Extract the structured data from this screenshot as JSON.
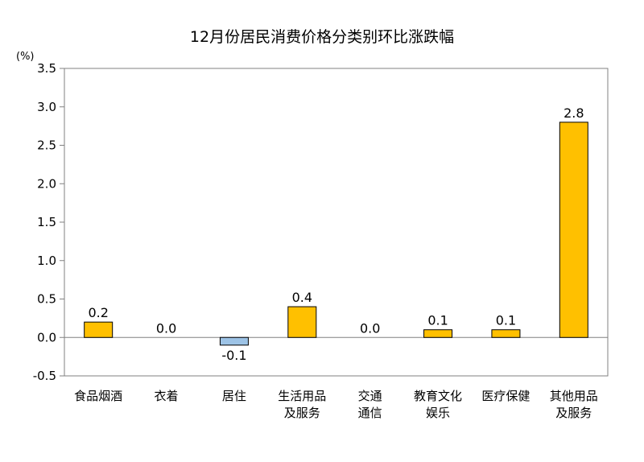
{
  "chart_data": {
    "type": "bar",
    "title": "12月份居民消费价格分类别环比涨跌幅",
    "unit": "(%)",
    "xlabel": "",
    "ylabel": "",
    "ylim": [
      -0.5,
      3.5
    ],
    "yticks": [
      "3.5",
      "3.0",
      "2.5",
      "2.0",
      "1.5",
      "1.0",
      "0.5",
      "0.0",
      "-0.5"
    ],
    "ytick_values": [
      3.5,
      3.0,
      2.5,
      2.0,
      1.5,
      1.0,
      0.5,
      0.0,
      -0.5
    ],
    "grid": false,
    "legend": "none",
    "categories": [
      [
        "食品烟酒"
      ],
      [
        "衣着"
      ],
      [
        "居住"
      ],
      [
        "生活用品",
        "及服务"
      ],
      [
        "交通",
        "通信"
      ],
      [
        "教育文化",
        "娱乐"
      ],
      [
        "医疗保健"
      ],
      [
        "其他用品",
        "及服务"
      ]
    ],
    "values": [
      0.2,
      0.0,
      -0.1,
      0.4,
      0.0,
      0.1,
      0.1,
      2.8
    ],
    "value_labels": [
      "0.2",
      "0.0",
      "-0.1",
      "0.4",
      "0.0",
      "0.1",
      "0.1",
      "2.8"
    ],
    "colors": {
      "positive": "#FFC000",
      "negative": "#9DC3E6",
      "bar_border": "#000000",
      "axis": "#808080"
    }
  }
}
